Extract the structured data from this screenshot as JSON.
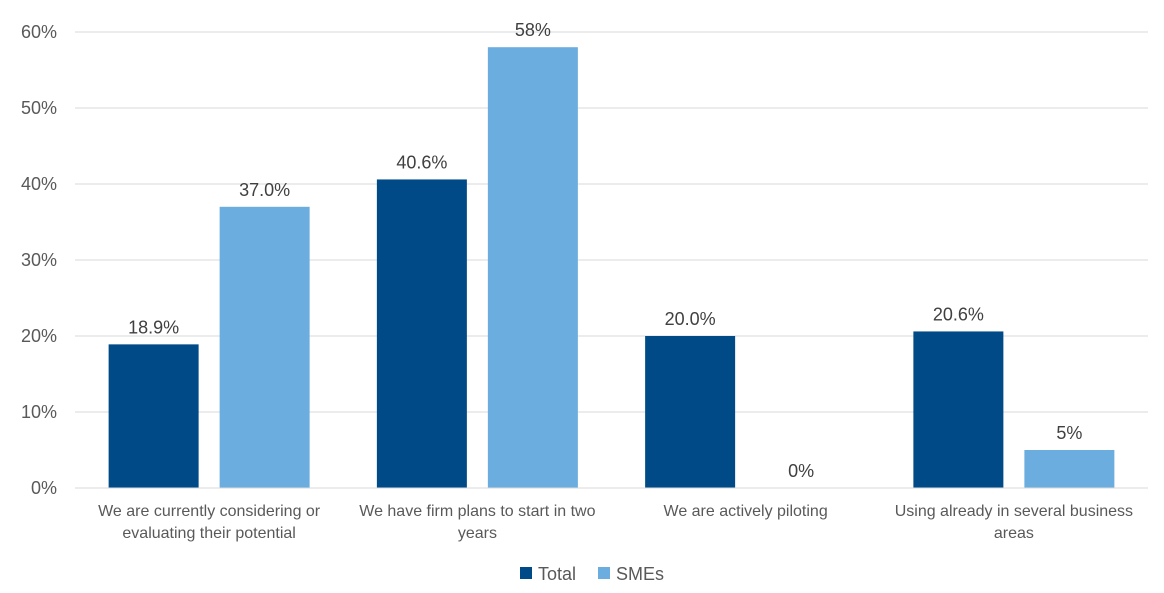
{
  "chart_data": {
    "type": "bar",
    "categories": [
      [
        "We are currently considering or",
        "evaluating their potential"
      ],
      [
        "We have firm plans to start in two",
        "years"
      ],
      [
        "We are actively piloting"
      ],
      [
        "Using already in several business",
        "areas"
      ]
    ],
    "series": [
      {
        "name": "Total",
        "color": "#004B87",
        "values": [
          18.9,
          40.6,
          20.0,
          20.6
        ],
        "labels": [
          "18.9%",
          "40.6%",
          "20.0%",
          "20.6%"
        ]
      },
      {
        "name": "SMEs",
        "color": "#6CADDF",
        "values": [
          37.0,
          58,
          0,
          5
        ],
        "labels": [
          "37.0%",
          "58%",
          "0%",
          "5%"
        ]
      }
    ],
    "y_ticks": [
      "0%",
      "10%",
      "20%",
      "30%",
      "40%",
      "50%",
      "60%"
    ],
    "ylim": [
      0,
      60
    ],
    "grid": true,
    "legend_position": "bottom"
  }
}
